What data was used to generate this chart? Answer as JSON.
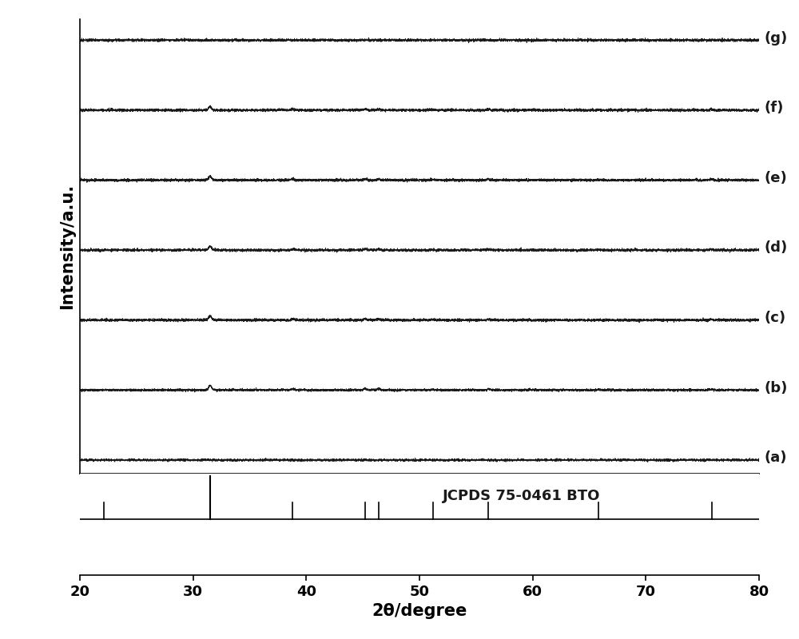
{
  "xlim": [
    20,
    80
  ],
  "xlabel": "2θ/degree",
  "ylabel": "Intensity/a.u.",
  "labels": [
    "(a)",
    "(b)",
    "(c)",
    "(d)",
    "(e)",
    "(f)",
    "(g)"
  ],
  "jcpds_text": "JCPDS 75-0461 BTO",
  "jcpds_tall_line": 31.5,
  "jcpds_short_lines": [
    22.1,
    38.8,
    45.2,
    46.4,
    51.2,
    56.1,
    65.8,
    75.8
  ],
  "bto_peaks": [
    31.5,
    38.8,
    45.2,
    46.4,
    51.2,
    56.1,
    65.8,
    75.8
  ],
  "bto_main_heights": [
    1.0,
    0.28,
    0.3,
    0.28,
    0.13,
    0.22,
    0.1,
    0.18
  ],
  "noise_seed": 42,
  "background_color": "#ffffff",
  "line_color": "#1a1a1a",
  "text_color": "#1a1a1a",
  "fontsize_labels": 15,
  "fontsize_ticks": 13,
  "fontsize_annotations": 13,
  "figsize": [
    10,
    8
  ],
  "dpi": 100
}
